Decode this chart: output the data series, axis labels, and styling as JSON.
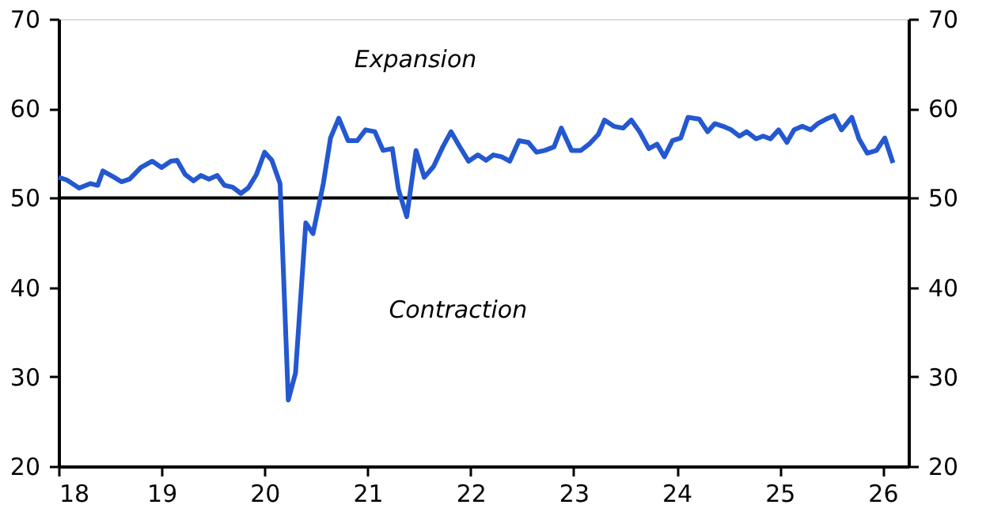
{
  "chart_data": {
    "type": "line",
    "xlim": [
      2018,
      2026.25
    ],
    "xticks": [
      {
        "value": 2018,
        "label": "18"
      },
      {
        "value": 2019,
        "label": "19"
      },
      {
        "value": 2020,
        "label": "20"
      },
      {
        "value": 2021,
        "label": "21"
      },
      {
        "value": 2022,
        "label": "22"
      },
      {
        "value": 2023,
        "label": "23"
      },
      {
        "value": 2024,
        "label": "24"
      },
      {
        "value": 2025,
        "label": "25"
      },
      {
        "value": 2026,
        "label": "26"
      }
    ],
    "ylim": [
      20,
      70
    ],
    "yticks": [
      20,
      30,
      40,
      50,
      60,
      70
    ],
    "y2lim": [
      20,
      70
    ],
    "y2ticks": [
      20,
      30,
      40,
      50,
      60,
      70
    ],
    "grid": false,
    "line_style": "solid",
    "marker": "none",
    "ref_lines": [
      {
        "axis": "y",
        "value": 50,
        "color": "#000000",
        "line_style": "solid"
      }
    ],
    "annotations": [
      "Expansion",
      "Contraction"
    ],
    "series": [
      {
        "color": "#2458d0",
        "x": [
          2018.0,
          2018.08,
          2018.2,
          2018.31,
          2018.38,
          2018.43,
          2018.54,
          2018.61,
          2018.69,
          2018.8,
          2018.91,
          2019.0,
          2019.09,
          2019.15,
          2019.23,
          2019.31,
          2019.38,
          2019.46,
          2019.54,
          2019.61,
          2019.69,
          2019.77,
          2019.84,
          2019.92,
          2020.0,
          2020.07,
          2020.15,
          2020.23,
          2020.3,
          2020.4,
          2020.47,
          2020.57,
          2020.64,
          2020.72,
          2020.81,
          2020.9,
          2020.98,
          2021.07,
          2021.15,
          2021.24,
          2021.3,
          2021.38,
          2021.47,
          2021.55,
          2021.64,
          2021.73,
          2021.81,
          2021.89,
          2021.98,
          2022.07,
          2022.15,
          2022.22,
          2022.3,
          2022.38,
          2022.47,
          2022.56,
          2022.64,
          2022.72,
          2022.81,
          2022.88,
          2022.98,
          2023.07,
          2023.15,
          2023.24,
          2023.3,
          2023.39,
          2023.48,
          2023.56,
          2023.64,
          2023.73,
          2023.81,
          2023.88,
          2023.96,
          2024.04,
          2024.11,
          2024.22,
          2024.3,
          2024.37,
          2024.45,
          2024.53,
          2024.61,
          2024.68,
          2024.77,
          2024.84,
          2024.91,
          2024.99,
          2025.07,
          2025.14,
          2025.22,
          2025.3,
          2025.37,
          2025.45,
          2025.53,
          2025.6,
          2025.7,
          2025.77,
          2025.85,
          2025.94,
          2026.02,
          2026.1
        ],
        "values": [
          52.3,
          52.0,
          51.1,
          51.6,
          51.4,
          53.0,
          52.3,
          51.8,
          52.1,
          53.4,
          54.1,
          53.4,
          54.1,
          54.2,
          52.6,
          51.9,
          52.5,
          52.1,
          52.5,
          51.4,
          51.2,
          50.5,
          51.1,
          52.6,
          55.1,
          54.2,
          51.6,
          27.4,
          30.4,
          47.2,
          46.0,
          51.6,
          56.7,
          58.9,
          56.4,
          56.4,
          57.6,
          57.4,
          55.3,
          55.5,
          50.9,
          47.9,
          55.3,
          52.3,
          53.5,
          55.7,
          57.4,
          55.8,
          54.1,
          54.8,
          54.2,
          54.8,
          54.6,
          54.1,
          56.4,
          56.2,
          55.1,
          55.3,
          55.7,
          57.8,
          55.3,
          55.3,
          56.0,
          57.1,
          58.7,
          58.0,
          57.8,
          58.7,
          57.4,
          55.5,
          56.0,
          54.6,
          56.4,
          56.7,
          59.0,
          58.8,
          57.4,
          58.3,
          58.0,
          57.6,
          56.9,
          57.4,
          56.6,
          56.9,
          56.6,
          57.6,
          56.2,
          57.6,
          58.0,
          57.6,
          58.3,
          58.8,
          59.2,
          57.6,
          59.0,
          56.6,
          55.0,
          55.3,
          56.7,
          53.9
        ]
      }
    ]
  }
}
